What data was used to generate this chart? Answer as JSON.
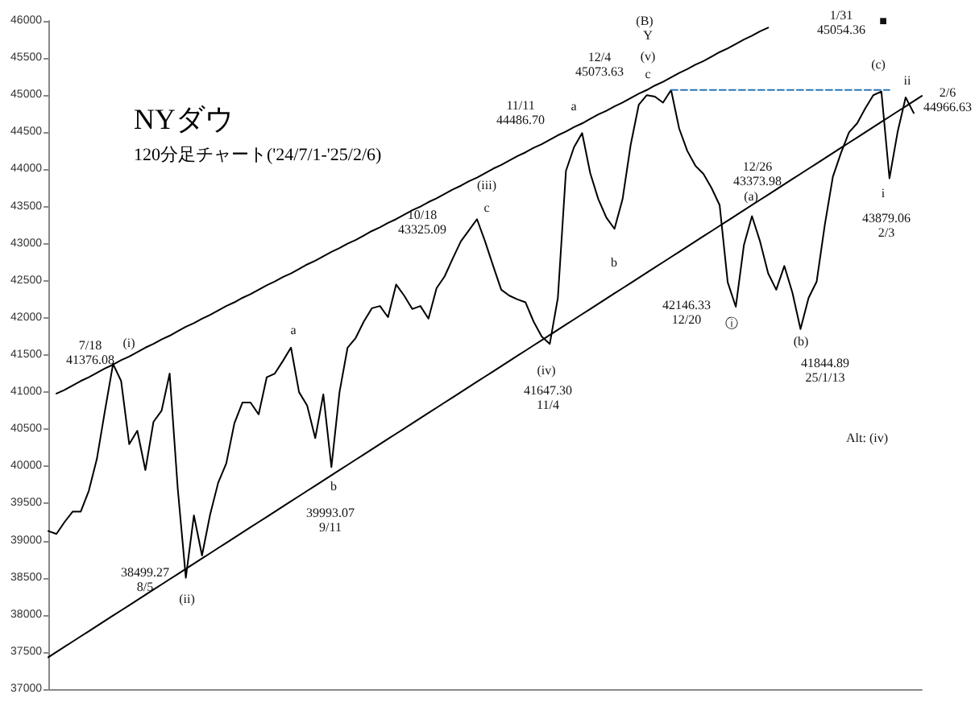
{
  "chart_data": {
    "type": "line",
    "title": "NYダウ",
    "subtitle": "120分足チャート('24/7/1-'25/2/6)",
    "tick_labels": "y",
    "ylim": [
      37000,
      46000
    ],
    "yticks": [
      37000,
      37500,
      38000,
      38500,
      39000,
      39500,
      40000,
      40500,
      41000,
      41500,
      42000,
      42500,
      43000,
      43500,
      44000,
      44500,
      45000,
      45500,
      46000
    ],
    "categories": [
      null,
      null,
      null,
      null,
      null,
      null,
      null,
      null,
      null,
      null,
      null,
      null,
      null,
      null,
      null,
      null,
      null,
      null,
      null,
      null,
      null,
      null,
      null,
      null,
      null,
      null,
      null,
      null,
      null,
      null,
      null,
      null,
      null,
      null,
      null,
      null,
      null,
      null,
      null,
      null,
      null,
      null,
      null,
      null,
      null,
      null,
      null,
      null,
      null,
      null,
      null,
      null,
      null,
      null,
      null,
      null,
      null,
      null,
      null,
      null,
      null,
      null,
      null,
      null,
      null,
      null,
      null,
      null,
      null,
      null,
      null,
      null,
      null,
      null,
      null,
      null,
      null,
      null,
      null,
      null,
      null,
      null,
      null,
      null,
      null,
      null,
      null,
      null,
      null,
      null,
      null,
      null,
      null,
      null,
      null,
      null,
      null,
      null,
      null,
      null,
      null,
      null,
      null,
      null,
      null,
      null,
      null,
      null,
      null
    ],
    "series": [
      {
        "color": "#000000",
        "values": [
          39130,
          39090,
          39250,
          39390,
          39390,
          39670,
          40100,
          40750,
          41380,
          41150,
          40300,
          40480,
          39950,
          40600,
          40750,
          41250,
          39700,
          38500,
          39340,
          38800,
          39350,
          39780,
          40040,
          40580,
          40860,
          40860,
          40700,
          41200,
          41250,
          41420,
          41600,
          41000,
          40820,
          40380,
          40970,
          39990,
          41000,
          41600,
          41730,
          41950,
          42130,
          42160,
          42010,
          42450,
          42300,
          42120,
          42160,
          41990,
          42400,
          42560,
          42800,
          43030,
          43180,
          43330,
          43030,
          42700,
          42380,
          42300,
          42250,
          42210,
          41950,
          41750,
          41650,
          42270,
          43980,
          44300,
          44490,
          43950,
          43600,
          43350,
          43200,
          43600,
          44330,
          44870,
          45000,
          44980,
          44900,
          45070,
          44550,
          44250,
          44050,
          43940,
          43750,
          43520,
          42480,
          42150,
          42980,
          43370,
          43030,
          42600,
          42380,
          42700,
          42340,
          41850,
          42270,
          42490,
          43250,
          43900,
          44220,
          44500,
          44620,
          44820,
          45000,
          45050,
          43880,
          44500,
          44970,
          44760,
          null
        ]
      },
      {
        "color": "#000000",
        "values": [
          null,
          40980,
          41030,
          41090,
          41150,
          41200,
          41260,
          41320,
          41370,
          41430,
          41480,
          41540,
          41600,
          41650,
          41710,
          41760,
          41820,
          41880,
          41930,
          41990,
          42040,
          42100,
          42160,
          42210,
          42270,
          42320,
          42380,
          42440,
          42490,
          42550,
          42600,
          42660,
          42720,
          42770,
          42830,
          42890,
          42940,
          43000,
          43050,
          43110,
          43170,
          43220,
          43280,
          43330,
          43390,
          43450,
          43500,
          43560,
          43610,
          43670,
          43730,
          43780,
          43840,
          43890,
          43950,
          44010,
          44060,
          44120,
          44180,
          44230,
          44290,
          44340,
          44400,
          44460,
          44510,
          44570,
          44620,
          44680,
          44740,
          44790,
          44850,
          44900,
          44960,
          45020,
          45070,
          45130,
          45180,
          45240,
          45300,
          45350,
          45410,
          45460,
          45520,
          45580,
          45630,
          45690,
          45750,
          45800,
          45860,
          45910,
          null,
          null,
          null,
          null,
          null,
          null,
          null,
          null,
          null,
          null,
          null,
          null,
          null,
          null,
          null,
          null,
          null,
          null,
          null
        ]
      },
      {
        "color": "#000000",
        "values": [
          37430,
          37500,
          37570,
          37640,
          37710,
          37780,
          37850,
          37920,
          37990,
          38060,
          38130,
          38200,
          38270,
          38340,
          38410,
          38480,
          38550,
          38620,
          38690,
          38760,
          38830,
          38900,
          38970,
          39040,
          39110,
          39180,
          39250,
          39320,
          39390,
          39460,
          39530,
          39600,
          39670,
          39740,
          39810,
          39880,
          39950,
          40020,
          40090,
          40160,
          40230,
          40300,
          40370,
          40440,
          40510,
          40580,
          40650,
          40720,
          40790,
          40860,
          40930,
          41000,
          41070,
          41140,
          41210,
          41280,
          41350,
          41420,
          41490,
          41560,
          41630,
          41700,
          41770,
          41840,
          41910,
          41980,
          42050,
          42120,
          42190,
          42260,
          42330,
          42400,
          42470,
          42540,
          42610,
          42680,
          42750,
          42820,
          42890,
          42960,
          43030,
          43100,
          43170,
          43240,
          43310,
          43380,
          43450,
          43520,
          43590,
          43660,
          43730,
          43800,
          43870,
          43940,
          44010,
          44080,
          44150,
          44220,
          44290,
          44360,
          44430,
          44500,
          44570,
          44640,
          44710,
          44780,
          44850,
          44920,
          44990
        ]
      },
      {
        "color": "#2e75b6",
        "line_style": "dashed",
        "values": [
          null,
          null,
          null,
          null,
          null,
          null,
          null,
          null,
          null,
          null,
          null,
          null,
          null,
          null,
          null,
          null,
          null,
          null,
          null,
          null,
          null,
          null,
          null,
          null,
          null,
          null,
          null,
          null,
          null,
          null,
          null,
          null,
          null,
          null,
          null,
          null,
          null,
          null,
          null,
          null,
          null,
          null,
          null,
          null,
          null,
          null,
          null,
          null,
          null,
          null,
          null,
          null,
          null,
          null,
          null,
          null,
          null,
          null,
          null,
          null,
          null,
          null,
          null,
          null,
          null,
          null,
          null,
          null,
          null,
          null,
          null,
          null,
          null,
          null,
          null,
          null,
          null,
          45070,
          45070,
          45070,
          45070,
          45070,
          45070,
          45070,
          45070,
          45070,
          45070,
          45070,
          45070,
          45070,
          45070,
          45070,
          45070,
          45070,
          45070,
          45070,
          45070,
          45070,
          45070,
          45070,
          45070,
          45070,
          45070,
          45070,
          45070,
          null,
          null,
          null,
          null
        ]
      }
    ],
    "annotations": [
      "(i)",
      "7/18\n41376.08",
      "(ii)",
      "38499.27\n8/5",
      "a",
      "b",
      "39993.07\n9/11",
      "10/18\n43325.09",
      "(iii)",
      "c",
      "(iv)",
      "41647.30\n11/4",
      "11/11\n44486.70",
      "a",
      "b",
      "(B)",
      "Y",
      "(v)",
      "c",
      "12/4\n45073.63",
      "12/26\n43373.98",
      "(a)",
      "42146.33\n12/20",
      "ⓘ",
      "(b)",
      "41844.89\n25/1/13",
      "Alt: (iv)",
      "1/31\n45054.36",
      "■",
      "(c)",
      "ii",
      "2/6\n44966.63",
      "i",
      "43879.06\n2/3"
    ]
  }
}
